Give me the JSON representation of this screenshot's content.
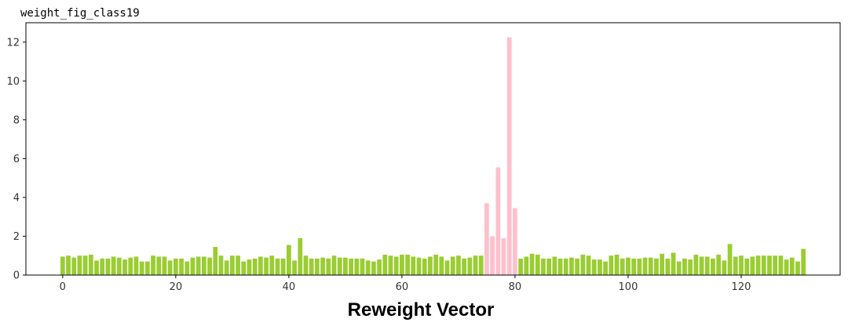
{
  "figure_title": "weight_fig_class19",
  "caption": "Reweight Vector",
  "colors": {
    "normal": "#9acd32",
    "highlight": "#ffc0cb"
  },
  "chart_data": {
    "type": "bar",
    "title": "weight_fig_class19",
    "xlabel": "",
    "ylabel": "",
    "xlim": [
      -6.5,
      137.5
    ],
    "ylim": [
      0,
      13
    ],
    "x_ticks": [
      0,
      20,
      40,
      60,
      80,
      100,
      120
    ],
    "y_ticks": [
      0,
      2,
      4,
      6,
      8,
      10,
      12
    ],
    "grid": false,
    "highlight_range": [
      75,
      80
    ],
    "x": [
      0,
      1,
      2,
      3,
      4,
      5,
      6,
      7,
      8,
      9,
      10,
      11,
      12,
      13,
      14,
      15,
      16,
      17,
      18,
      19,
      20,
      21,
      22,
      23,
      24,
      25,
      26,
      27,
      28,
      29,
      30,
      31,
      32,
      33,
      34,
      35,
      36,
      37,
      38,
      39,
      40,
      41,
      42,
      43,
      44,
      45,
      46,
      47,
      48,
      49,
      50,
      51,
      52,
      53,
      54,
      55,
      56,
      57,
      58,
      59,
      60,
      61,
      62,
      63,
      64,
      65,
      66,
      67,
      68,
      69,
      70,
      71,
      72,
      73,
      74,
      75,
      76,
      77,
      78,
      79,
      80,
      81,
      82,
      83,
      84,
      85,
      86,
      87,
      88,
      89,
      90,
      91,
      92,
      93,
      94,
      95,
      96,
      97,
      98,
      99,
      100,
      101,
      102,
      103,
      104,
      105,
      106,
      107,
      108,
      109,
      110,
      111,
      112,
      113,
      114,
      115,
      116,
      117,
      118,
      119,
      120,
      121,
      122,
      123,
      124,
      125,
      126,
      127,
      128,
      129,
      130,
      131
    ],
    "values": [
      0.95,
      1.0,
      0.9,
      1.0,
      1.0,
      1.05,
      0.75,
      0.85,
      0.85,
      0.95,
      0.9,
      0.8,
      0.9,
      0.95,
      0.7,
      0.7,
      1.0,
      0.95,
      0.95,
      0.75,
      0.85,
      0.85,
      0.7,
      0.9,
      0.95,
      0.95,
      0.9,
      1.45,
      1.0,
      0.75,
      1.0,
      1.0,
      0.7,
      0.8,
      0.85,
      0.95,
      0.9,
      1.0,
      0.85,
      0.85,
      1.55,
      0.75,
      1.9,
      1.0,
      0.85,
      0.85,
      0.9,
      0.85,
      1.0,
      0.9,
      0.9,
      0.85,
      0.85,
      0.85,
      0.75,
      0.7,
      0.8,
      1.05,
      1.0,
      0.95,
      1.05,
      1.05,
      0.95,
      0.9,
      0.85,
      0.95,
      1.05,
      0.95,
      0.75,
      0.95,
      1.0,
      0.85,
      0.9,
      1.0,
      1.0,
      3.7,
      2.0,
      5.55,
      1.9,
      12.25,
      3.45,
      0.85,
      0.95,
      1.1,
      1.05,
      0.85,
      0.85,
      0.95,
      0.85,
      0.85,
      0.9,
      0.85,
      1.05,
      1.0,
      0.8,
      0.8,
      0.7,
      1.0,
      1.05,
      0.85,
      0.9,
      0.85,
      0.85,
      0.9,
      0.9,
      0.85,
      1.1,
      0.85,
      1.15,
      0.7,
      0.85,
      0.8,
      1.05,
      0.95,
      0.95,
      0.85,
      1.05,
      0.75,
      1.6,
      0.95,
      1.0,
      0.85,
      0.95,
      1.0,
      1.0,
      1.0,
      1.0,
      1.0,
      0.8,
      0.9,
      0.7,
      1.35
    ]
  }
}
